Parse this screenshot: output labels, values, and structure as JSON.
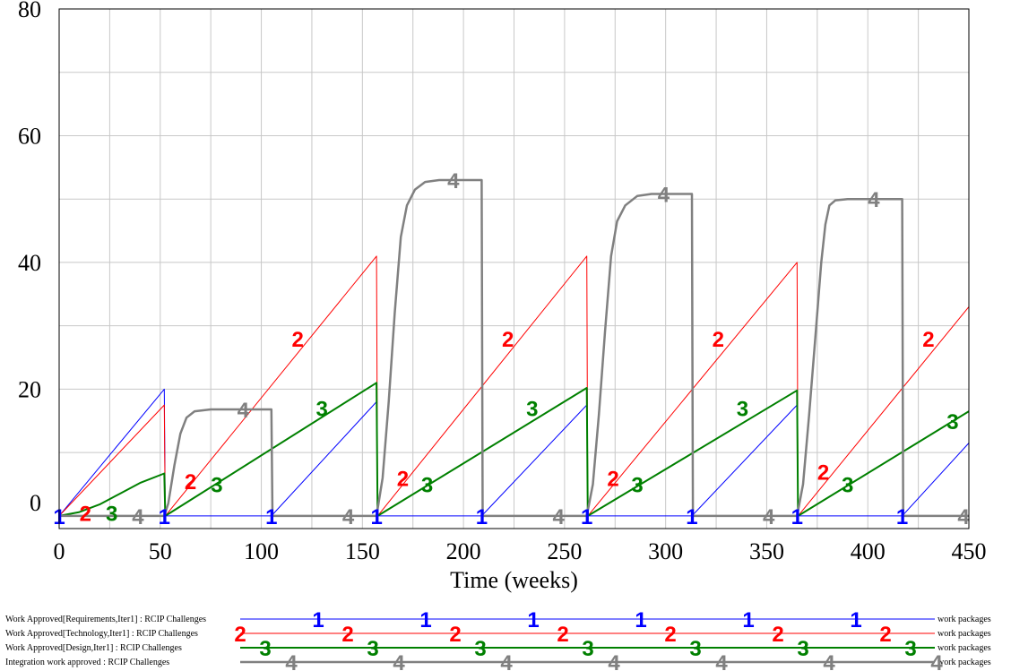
{
  "chart_data": {
    "type": "line",
    "xlabel": "Time (weeks)",
    "ylabel": "",
    "xlim": [
      0,
      450
    ],
    "ylim": [
      -2,
      80
    ],
    "x_ticks": [
      0,
      50,
      100,
      150,
      200,
      250,
      300,
      350,
      400,
      450
    ],
    "y_ticks": [
      0,
      20,
      40,
      60,
      80
    ],
    "grid": true,
    "legend_position": "bottom",
    "series": [
      {
        "name": "Work Approved[Requirements,Iter1] : RCIP Challenges",
        "marker": "1",
        "color": "#0000ff",
        "unit": "work packages",
        "points": [
          [
            0,
            0
          ],
          [
            52,
            20
          ],
          [
            52.5,
            0
          ],
          [
            105,
            0
          ],
          [
            157,
            18
          ],
          [
            157.5,
            0
          ],
          [
            209,
            0
          ],
          [
            261,
            17.5
          ],
          [
            261.5,
            0
          ],
          [
            313,
            0
          ],
          [
            365,
            17.5
          ],
          [
            365.5,
            0
          ],
          [
            417,
            0
          ],
          [
            450,
            11.5
          ]
        ]
      },
      {
        "name": "Work Approved[Technology,Iter1] : RCIP Challenges",
        "marker": "2",
        "color": "#ff0000",
        "unit": "work packages",
        "points": [
          [
            0,
            0
          ],
          [
            52,
            17.5
          ],
          [
            52.5,
            0
          ],
          [
            157,
            41
          ],
          [
            157.5,
            0
          ],
          [
            261,
            41
          ],
          [
            261.5,
            0
          ],
          [
            365,
            40
          ],
          [
            365.5,
            0
          ],
          [
            450,
            33
          ]
        ]
      },
      {
        "name": "Work Approved[Design,Iter1] : RCIP Challenges",
        "marker": "3",
        "color": "#008000",
        "unit": "work packages",
        "points": [
          [
            0,
            0
          ],
          [
            10,
            0.6
          ],
          [
            20,
            1.8
          ],
          [
            30,
            3.5
          ],
          [
            40,
            5.2
          ],
          [
            52,
            6.7
          ],
          [
            52.5,
            0
          ],
          [
            157,
            21
          ],
          [
            157.5,
            0
          ],
          [
            261,
            20.2
          ],
          [
            261.5,
            0
          ],
          [
            365,
            19.8
          ],
          [
            365.5,
            0
          ],
          [
            450,
            16.5
          ]
        ]
      },
      {
        "name": "Integration work approved : RCIP Challenges",
        "marker": "4",
        "color": "#808080",
        "unit": "work packages",
        "points": [
          [
            0,
            0
          ],
          [
            52,
            0
          ],
          [
            54,
            2
          ],
          [
            57,
            8
          ],
          [
            60,
            13
          ],
          [
            63,
            15.5
          ],
          [
            67,
            16.5
          ],
          [
            75,
            16.8
          ],
          [
            105,
            16.8
          ],
          [
            105.5,
            0
          ],
          [
            157,
            0
          ],
          [
            160,
            6
          ],
          [
            163,
            18
          ],
          [
            166,
            32
          ],
          [
            169,
            44
          ],
          [
            172,
            49
          ],
          [
            176,
            51.5
          ],
          [
            181,
            52.7
          ],
          [
            188,
            53
          ],
          [
            209,
            53
          ],
          [
            209.5,
            0
          ],
          [
            261,
            0
          ],
          [
            264,
            5
          ],
          [
            267,
            16
          ],
          [
            270,
            29
          ],
          [
            273,
            41
          ],
          [
            276,
            46.5
          ],
          [
            280,
            49
          ],
          [
            286,
            50.5
          ],
          [
            293,
            50.8
          ],
          [
            313,
            50.8
          ],
          [
            313.5,
            0
          ],
          [
            365,
            0
          ],
          [
            368,
            5
          ],
          [
            371,
            16
          ],
          [
            374,
            28
          ],
          [
            377,
            40
          ],
          [
            379,
            46
          ],
          [
            381,
            49
          ],
          [
            384,
            49.8
          ],
          [
            390,
            50
          ],
          [
            417,
            50
          ],
          [
            417.5,
            0
          ],
          [
            450,
            0
          ]
        ]
      }
    ],
    "plot_markers": [
      {
        "label": "1",
        "series": 0,
        "at": [
          [
            0,
            0
          ],
          [
            52,
            0
          ],
          [
            105,
            0
          ],
          [
            157,
            0
          ],
          [
            209,
            0
          ],
          [
            261,
            0
          ],
          [
            313,
            0
          ],
          [
            365,
            0
          ],
          [
            417,
            0
          ]
        ]
      },
      {
        "label": "2",
        "series": 1,
        "at": [
          [
            13,
            0.5
          ],
          [
            65,
            5.5
          ],
          [
            118,
            28
          ],
          [
            170,
            6
          ],
          [
            222,
            28
          ],
          [
            274,
            6
          ],
          [
            326,
            28
          ],
          [
            378,
            7
          ],
          [
            430,
            28
          ]
        ]
      },
      {
        "label": "3",
        "series": 2,
        "at": [
          [
            26,
            0.5
          ],
          [
            78,
            5
          ],
          [
            130,
            17
          ],
          [
            182,
            5
          ],
          [
            234,
            17
          ],
          [
            286,
            5
          ],
          [
            338,
            17
          ],
          [
            390,
            5
          ],
          [
            442,
            15
          ]
        ]
      },
      {
        "label": "4",
        "series": 3,
        "at": [
          [
            39,
            0
          ],
          [
            91,
            16.8
          ],
          [
            143,
            0
          ],
          [
            195,
            53
          ],
          [
            247,
            0
          ],
          [
            299,
            50.8
          ],
          [
            351,
            0
          ],
          [
            403,
            50
          ],
          [
            455,
            0
          ]
        ]
      }
    ]
  }
}
